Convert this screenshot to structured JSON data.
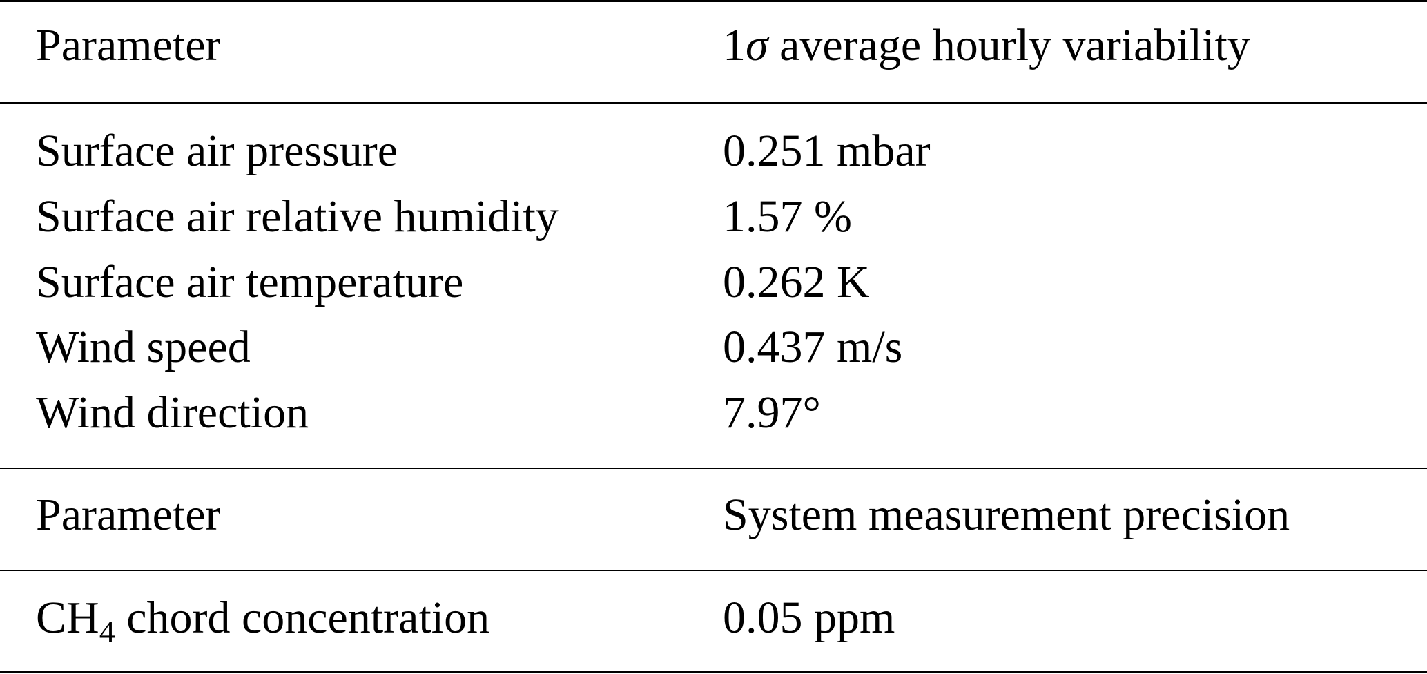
{
  "table": {
    "section1": {
      "header": {
        "param": "Parameter",
        "value_prefix": "1",
        "value_symbol": "σ",
        "value_rest": " average hourly variability"
      },
      "rows": [
        {
          "param": "Surface air pressure",
          "value": "0.251 mbar"
        },
        {
          "param": "Surface air relative humidity",
          "value": "1.57 %"
        },
        {
          "param": "Surface air temperature",
          "value": "0.262 K"
        },
        {
          "param": "Wind speed",
          "value": "0.437 m/s"
        },
        {
          "param": "Wind direction",
          "value": "7.97°"
        }
      ]
    },
    "section2": {
      "header": {
        "param": "Parameter",
        "value": "System measurement precision"
      },
      "rows": [
        {
          "param_base": "CH",
          "param_sub": "4",
          "param_rest": " chord concentration",
          "value": "0.05 ppm"
        }
      ]
    }
  }
}
